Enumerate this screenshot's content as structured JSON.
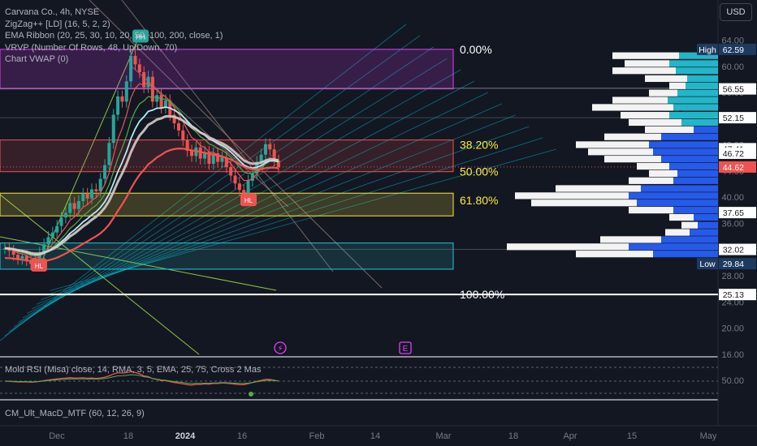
{
  "legend": {
    "symbol": "Carvana Co., 4h, NYSE",
    "zigzag": "ZigZag++ [LD] (16, 5, 2, 2)",
    "ema_ribbon": "EMA Ribbon (20, 25, 30, 10, 20, 50, 100, 200, close, 1)",
    "vrvp": "VRVP (Number Of Rows, 48, Up/Down, 70)",
    "vwap": "Chart VWAP (0)"
  },
  "currency": "USD",
  "colors": {
    "background": "#131722",
    "up": "#26a69a",
    "down": "#ef5350",
    "vp_up": "#26c6da",
    "vp_down": "#2962ff",
    "vp_value_area": "#ffffff",
    "fib_top": "#e040fb",
    "fib_382": "#ef5350",
    "fib_618": "#ffeb3b",
    "fib_box_bottom": "#26c6da",
    "ema_fast": "#ef5350",
    "ema_mid": "#4caf50",
    "ema_slow": "#b2ebf2",
    "vwap": "#d7ccc8",
    "trend_up": "#8bc34a",
    "channel": "#00bcd4",
    "channel_down": "#a1887f"
  },
  "chart_data": {
    "type": "candlestick",
    "title": "Carvana Co., 4h, NYSE",
    "price_axis": {
      "ticks": [
        64.0,
        60.0,
        56.0,
        52.0,
        48.0,
        44.0,
        40.0,
        36.0,
        32.0,
        28.0,
        24.0,
        20.0,
        16.0
      ],
      "range": [
        15.5,
        65.5
      ]
    },
    "time_axis": {
      "ticks": [
        "Dec",
        "18",
        "2024",
        "16",
        "Feb",
        "14",
        "Mar",
        "18",
        "Apr",
        "15",
        "May"
      ]
    },
    "price_labels": [
      {
        "value": 62.59,
        "label": "High",
        "text": "62.59",
        "style": "high"
      },
      {
        "value": 56.55,
        "text": "56.55",
        "style": "plain"
      },
      {
        "value": 52.15,
        "text": "52.15",
        "style": "plain"
      },
      {
        "value": 47.41,
        "text": "47.41",
        "style": "plain"
      },
      {
        "value": 46.72,
        "text": "46.72",
        "style": "plain"
      },
      {
        "value": 44.62,
        "text": "44.62",
        "style": "last"
      },
      {
        "value": 37.65,
        "text": "37.65",
        "style": "plain"
      },
      {
        "value": 32.02,
        "text": "32.02",
        "style": "plain"
      },
      {
        "value": 29.84,
        "label": "Low",
        "text": "29.84",
        "style": "low"
      },
      {
        "value": 25.13,
        "text": "25.13",
        "style": "plain"
      }
    ],
    "fibonacci": [
      {
        "level": "0.00%",
        "price": 62.59
      },
      {
        "level": "38.20%",
        "price": 48.0
      },
      {
        "level": "50.00%",
        "price": 43.9
      },
      {
        "level": "61.80%",
        "price": 39.5
      },
      {
        "level": "100.00%",
        "price": 25.13
      }
    ],
    "zigzag_labels": [
      {
        "text": "HH",
        "price": 64.5,
        "position": "above"
      },
      {
        "text": "HL",
        "price": 39.5,
        "position": "below"
      },
      {
        "text": "HL",
        "price": 29.5,
        "position": "below"
      }
    ],
    "candles_close": [
      32.2,
      31.8,
      31.2,
      30.6,
      31.0,
      30.4,
      29.8,
      30.6,
      31.5,
      32.8,
      33.9,
      34.6,
      35.6,
      36.9,
      37.6,
      39.1,
      38.2,
      39.4,
      40.5,
      39.8,
      41.2,
      40.9,
      42.8,
      44.9,
      48.3,
      52.6,
      55.4,
      54.6,
      57.7,
      61.6,
      60.3,
      59.1,
      56.8,
      58.4,
      54.6,
      55.6,
      53.7,
      54.8,
      52.6,
      51.3,
      50.2,
      48.7,
      47.1,
      46.3,
      47.6,
      45.9,
      46.9,
      45.1,
      46.7,
      45.4,
      46.1,
      44.6,
      43.3,
      42.1,
      41.1,
      40.6,
      42.5,
      43.6,
      45.4,
      46.5,
      48.1,
      47.3,
      45.6,
      44.62
    ],
    "volume_profile_rows": [
      {
        "price": 61.5,
        "up": 48,
        "down": 0,
        "total": 130
      },
      {
        "price": 60.3,
        "up": 60,
        "down": 0,
        "total": 115
      },
      {
        "price": 59.2,
        "up": 52,
        "down": 0,
        "total": 130
      },
      {
        "price": 58.0,
        "up": 38,
        "down": 0,
        "total": 90
      },
      {
        "price": 56.9,
        "up": 40,
        "down": 0,
        "total": 60
      },
      {
        "price": 55.8,
        "up": 50,
        "down": 0,
        "total": 85
      },
      {
        "price": 54.7,
        "up": 62,
        "down": 0,
        "total": 130
      },
      {
        "price": 53.6,
        "up": 55,
        "down": 0,
        "total": 155
      },
      {
        "price": 52.4,
        "up": 60,
        "down": 0,
        "total": 120
      },
      {
        "price": 51.3,
        "up": 45,
        "down": 0,
        "total": 110
      },
      {
        "price": 50.2,
        "up": 0,
        "down": 30,
        "total": 90
      },
      {
        "price": 49.1,
        "up": 0,
        "down": 70,
        "total": 140
      },
      {
        "price": 47.9,
        "up": 0,
        "down": 85,
        "total": 175
      },
      {
        "price": 46.8,
        "up": 0,
        "down": 80,
        "total": 160
      },
      {
        "price": 45.7,
        "up": 0,
        "down": 70,
        "total": 140
      },
      {
        "price": 44.6,
        "up": 0,
        "down": 60,
        "total": 100
      },
      {
        "price": 43.5,
        "up": 0,
        "down": 50,
        "total": 85
      },
      {
        "price": 42.4,
        "up": 0,
        "down": 55,
        "total": 110
      },
      {
        "price": 41.2,
        "up": 0,
        "down": 95,
        "total": 200
      },
      {
        "price": 40.1,
        "up": 0,
        "down": 110,
        "total": 250
      },
      {
        "price": 39.0,
        "up": 0,
        "down": 100,
        "total": 230
      },
      {
        "price": 37.9,
        "up": 0,
        "down": 55,
        "total": 110
      },
      {
        "price": 36.8,
        "up": 0,
        "down": 30,
        "total": 60
      },
      {
        "price": 35.6,
        "up": 0,
        "down": 25,
        "total": 45
      },
      {
        "price": 34.5,
        "up": 0,
        "down": 35,
        "total": 65
      },
      {
        "price": 33.4,
        "up": 0,
        "down": 70,
        "total": 145
      },
      {
        "price": 32.3,
        "up": 0,
        "down": 110,
        "total": 260
      },
      {
        "price": 31.2,
        "up": 0,
        "down": 80,
        "total": 175
      }
    ]
  },
  "rsi_pane": {
    "label": "Mold RSI (Misa) close, 14, RMA, 3, 5, EMA, 25, 75, Cross 2 Mas",
    "axis_tick": "50.00"
  },
  "macd_pane": {
    "label": "CM_Ult_MacD_MTF (60, 12, 26, 9)"
  },
  "markers": {
    "flash_icon": "lightning-icon",
    "earnings_icon": "E"
  }
}
